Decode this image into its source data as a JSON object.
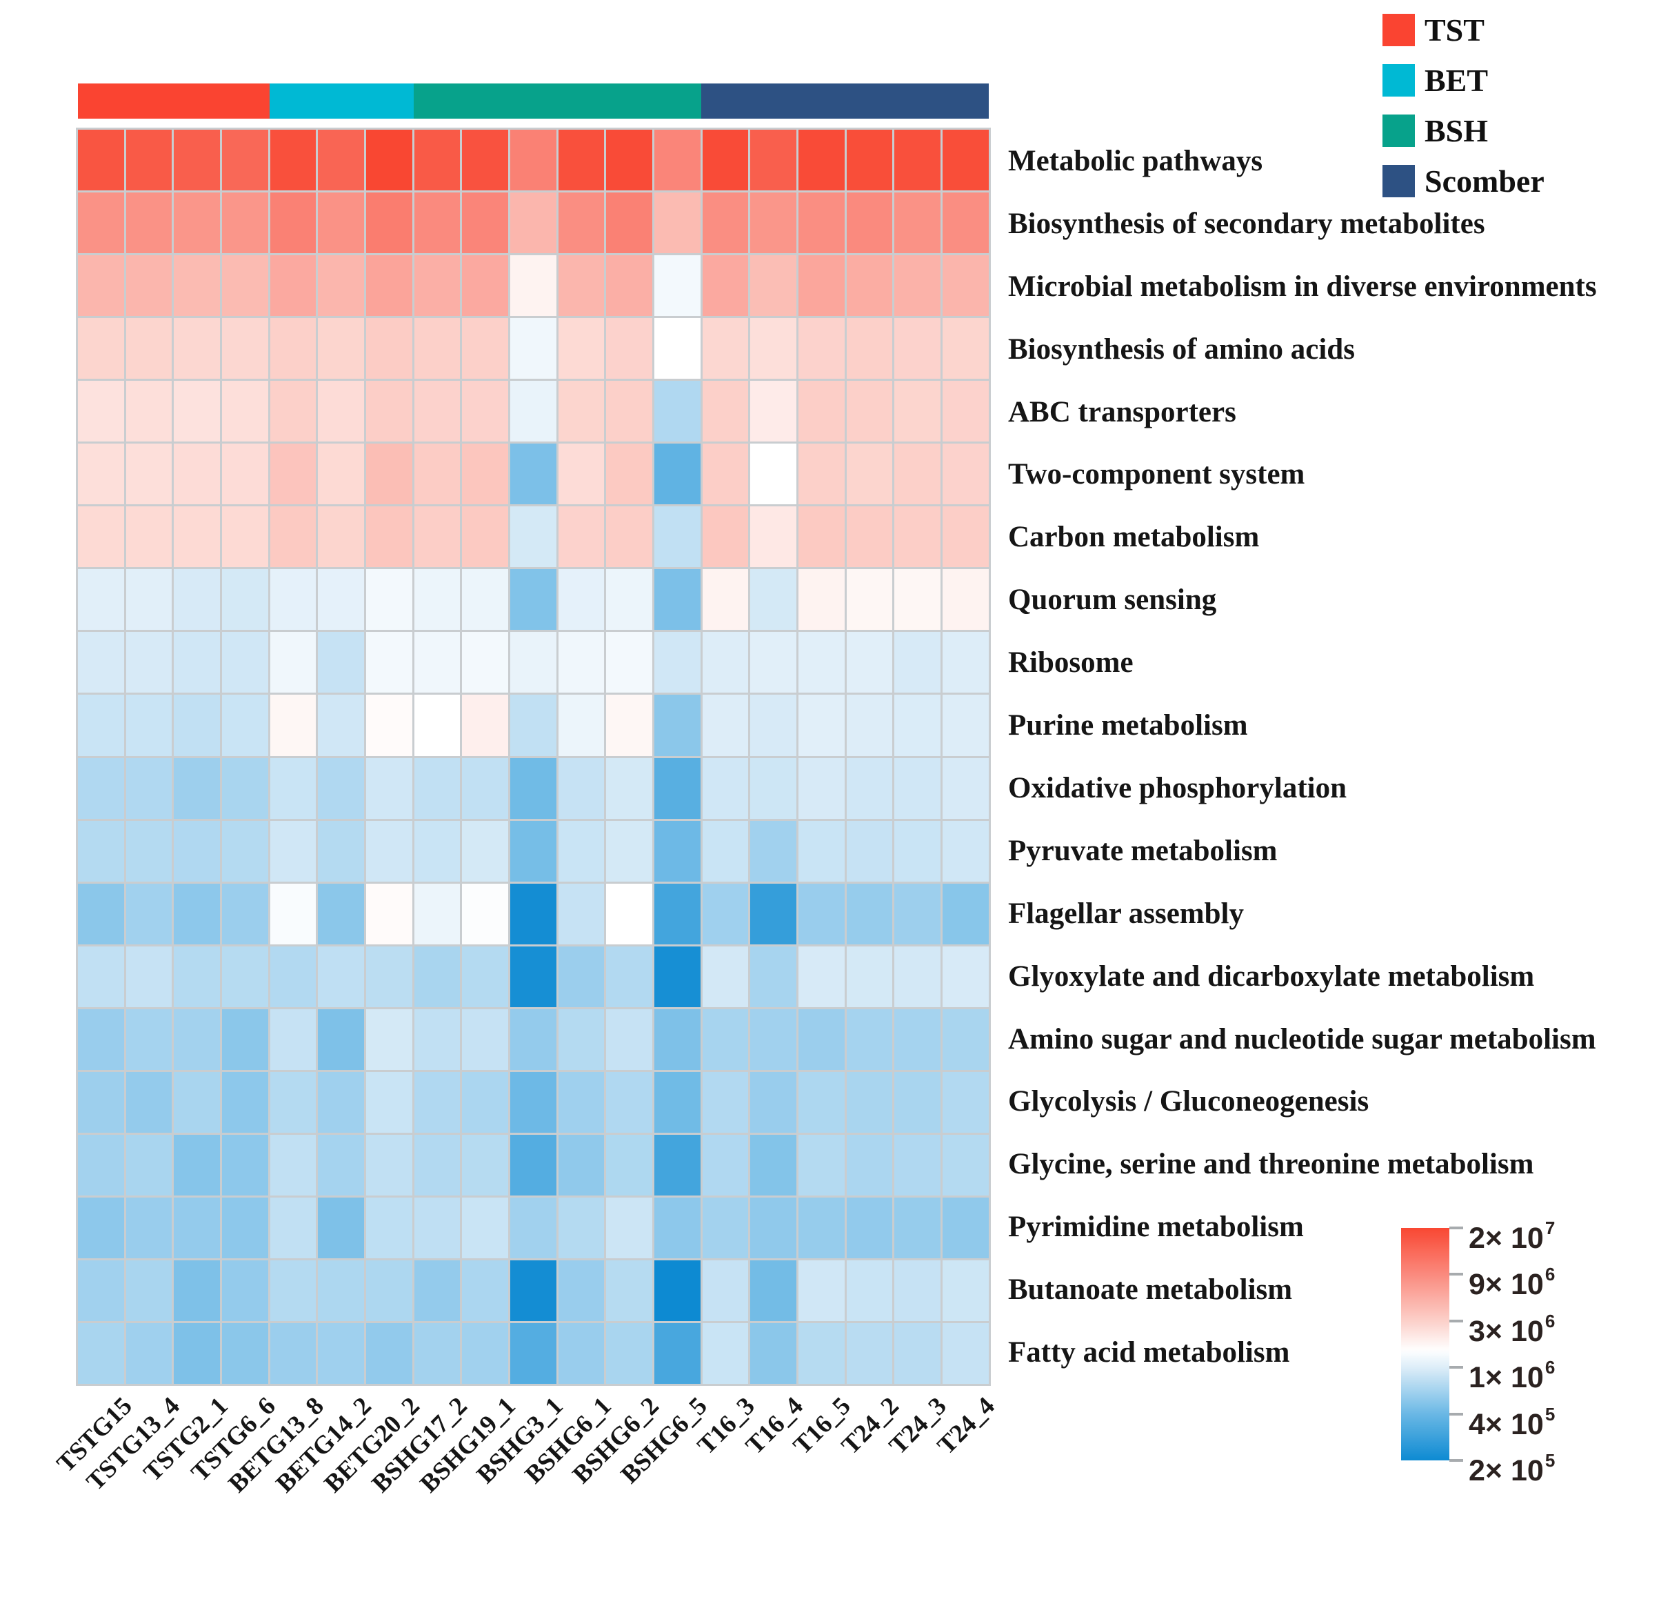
{
  "legend": {
    "items": [
      {
        "label": "TST",
        "color": "#fa4431"
      },
      {
        "label": "BET",
        "color": "#00b9d4"
      },
      {
        "label": "BSH",
        "color": "#07a28b"
      },
      {
        "label": "Scomber",
        "color": "#2d5183"
      }
    ]
  },
  "colorbar": {
    "ticks": [
      {
        "mantissa": "2× 10",
        "exp": "7",
        "value": 20000000
      },
      {
        "mantissa": "9× 10",
        "exp": "6",
        "value": 9000000
      },
      {
        "mantissa": "3× 10",
        "exp": "6",
        "value": 3000000
      },
      {
        "mantissa": "1× 10",
        "exp": "6",
        "value": 1000000
      },
      {
        "mantissa": "4× 10",
        "exp": "5",
        "value": 400000
      },
      {
        "mantissa": "2× 10",
        "exp": "5",
        "value": 200000
      }
    ]
  },
  "chart_data": {
    "type": "heatmap",
    "columns": [
      "TSTG15",
      "TSTG13_4",
      "TSTG2_1",
      "TSTG6_6",
      "BETG13_8",
      "BETG14_2",
      "BETG20_2",
      "BSHG17_2",
      "BSHG19_1",
      "BSHG3_1",
      "BSHG6_1",
      "BSHG6_2",
      "BSHG6_5",
      "T16_3",
      "T16_4",
      "T16_5",
      "T24_2",
      "T24_3",
      "T24_4"
    ],
    "column_groups": [
      {
        "name": "TST",
        "color": "#fa4431",
        "start": 0,
        "count": 4
      },
      {
        "name": "BET",
        "color": "#00b9d4",
        "start": 4,
        "count": 3
      },
      {
        "name": "BSH",
        "color": "#07a28b",
        "start": 7,
        "count": 6
      },
      {
        "name": "Scomber",
        "color": "#2d5183",
        "start": 13,
        "count": 6
      }
    ],
    "rows": [
      "Metabolic pathways",
      "Biosynthesis of secondary metabolites",
      "Microbial metabolism in diverse environments",
      "Biosynthesis of amino acids",
      "ABC transporters",
      "Two-component system",
      "Carbon metabolism",
      "Quorum sensing",
      "Ribosome",
      "Purine metabolism",
      "Oxidative phosphorylation",
      "Pyruvate metabolism",
      "Flagellar assembly",
      "Glyoxylate and dicarboxylate metabolism",
      "Amino sugar and nucleotide sugar metabolism",
      "Glycolysis / Gluconeogenesis",
      "Glycine, serine and threonine metabolism",
      "Pyrimidine metabolism",
      "Butanoate metabolism",
      "Fatty acid metabolism"
    ],
    "values": [
      [
        17000000,
        16000000,
        15000000,
        13500000,
        18000000,
        14000000,
        20000000,
        16000000,
        17500000,
        10000000,
        18000000,
        19000000,
        9500000,
        19000000,
        15000000,
        19000000,
        18500000,
        18000000,
        18500000
      ],
      [
        8000000,
        8000000,
        7500000,
        7500000,
        10000000,
        8000000,
        10500000,
        9000000,
        9500000,
        4500000,
        8500000,
        10000000,
        4200000,
        8500000,
        7500000,
        8500000,
        9000000,
        8000000,
        8500000
      ],
      [
        4500000,
        4500000,
        4200000,
        4200000,
        5500000,
        4500000,
        6000000,
        5000000,
        5500000,
        1800000,
        4500000,
        5000000,
        1300000,
        5500000,
        4000000,
        5800000,
        5200000,
        4800000,
        4600000
      ],
      [
        2800000,
        2800000,
        2700000,
        2700000,
        3000000,
        2800000,
        3200000,
        3000000,
        3000000,
        1250000,
        2600000,
        2900000,
        1500000,
        2700000,
        2400000,
        2900000,
        3000000,
        2900000,
        2800000
      ],
      [
        2300000,
        2400000,
        2300000,
        2400000,
        3000000,
        2500000,
        3100000,
        2900000,
        2900000,
        1150000,
        2800000,
        3000000,
        700000,
        3000000,
        2000000,
        3100000,
        3000000,
        2800000,
        2900000
      ],
      [
        2400000,
        2400000,
        2500000,
        2500000,
        3600000,
        2600000,
        4000000,
        3200000,
        3500000,
        460000,
        2500000,
        3300000,
        370000,
        3100000,
        1500000,
        3000000,
        2800000,
        3000000,
        2900000
      ],
      [
        2600000,
        2600000,
        2600000,
        2600000,
        3300000,
        2800000,
        3500000,
        3100000,
        3300000,
        930000,
        2900000,
        3100000,
        800000,
        3400000,
        2100000,
        3300000,
        3200000,
        3100000,
        3100000
      ],
      [
        1050000,
        1050000,
        950000,
        930000,
        1100000,
        1100000,
        1300000,
        1200000,
        1200000,
        480000,
        1100000,
        1200000,
        460000,
        1800000,
        930000,
        1800000,
        1700000,
        1700000,
        1800000
      ],
      [
        950000,
        950000,
        900000,
        900000,
        1250000,
        830000,
        1300000,
        1250000,
        1300000,
        1150000,
        1250000,
        1300000,
        900000,
        1000000,
        1050000,
        1050000,
        1050000,
        950000,
        1000000
      ],
      [
        850000,
        850000,
        800000,
        850000,
        1700000,
        900000,
        1600000,
        1500000,
        1900000,
        800000,
        1200000,
        1700000,
        520000,
        1000000,
        950000,
        1050000,
        1000000,
        980000,
        1000000
      ],
      [
        700000,
        700000,
        600000,
        660000,
        850000,
        700000,
        900000,
        800000,
        800000,
        420000,
        830000,
        930000,
        350000,
        900000,
        880000,
        950000,
        900000,
        900000,
        950000
      ],
      [
        720000,
        720000,
        700000,
        720000,
        900000,
        720000,
        900000,
        850000,
        930000,
        440000,
        850000,
        930000,
        410000,
        850000,
        620000,
        850000,
        830000,
        850000,
        900000
      ],
      [
        520000,
        620000,
        530000,
        590000,
        1400000,
        520000,
        1600000,
        1200000,
        1450000,
        210000,
        830000,
        1500000,
        300000,
        610000,
        270000,
        580000,
        570000,
        600000,
        510000
      ],
      [
        800000,
        830000,
        720000,
        730000,
        710000,
        790000,
        760000,
        660000,
        720000,
        215000,
        590000,
        710000,
        215000,
        920000,
        650000,
        950000,
        930000,
        920000,
        950000
      ],
      [
        580000,
        640000,
        630000,
        520000,
        830000,
        470000,
        930000,
        800000,
        830000,
        560000,
        720000,
        830000,
        470000,
        650000,
        620000,
        590000,
        640000,
        640000,
        660000
      ],
      [
        600000,
        560000,
        660000,
        530000,
        720000,
        610000,
        850000,
        700000,
        670000,
        410000,
        610000,
        700000,
        420000,
        710000,
        580000,
        680000,
        660000,
        660000,
        710000
      ],
      [
        630000,
        660000,
        500000,
        530000,
        800000,
        640000,
        800000,
        710000,
        730000,
        340000,
        540000,
        690000,
        300000,
        700000,
        490000,
        720000,
        670000,
        700000,
        720000
      ],
      [
        530000,
        580000,
        560000,
        530000,
        800000,
        470000,
        780000,
        790000,
        850000,
        620000,
        720000,
        870000,
        530000,
        630000,
        540000,
        570000,
        550000,
        570000,
        540000
      ],
      [
        620000,
        660000,
        470000,
        560000,
        720000,
        680000,
        680000,
        560000,
        670000,
        210000,
        580000,
        730000,
        200000,
        830000,
        430000,
        900000,
        850000,
        830000,
        880000
      ],
      [
        660000,
        610000,
        470000,
        520000,
        590000,
        610000,
        550000,
        630000,
        620000,
        340000,
        580000,
        660000,
        310000,
        850000,
        520000,
        730000,
        750000,
        750000,
        830000
      ]
    ],
    "color_scale": {
      "type": "log",
      "tick_values": [
        20000000,
        9000000,
        3000000,
        1000000,
        400000,
        200000
      ],
      "anchors": [
        {
          "value": 20000000,
          "color": "#f94732"
        },
        {
          "value": 9000000,
          "color": "#fa8a7e"
        },
        {
          "value": 3000000,
          "color": "#fcd0c9"
        },
        {
          "value": 1500000,
          "color": "#ffffff"
        },
        {
          "value": 1000000,
          "color": "#ddedf8"
        },
        {
          "value": 400000,
          "color": "#6ab8e5"
        },
        {
          "value": 200000,
          "color": "#0d8ad2"
        }
      ]
    },
    "layout": {
      "grid_line_color": "#c9cdd0",
      "legend_position": "top-right",
      "colorbar_position": "bottom-right",
      "column_labels_rotation_deg": -45
    }
  }
}
